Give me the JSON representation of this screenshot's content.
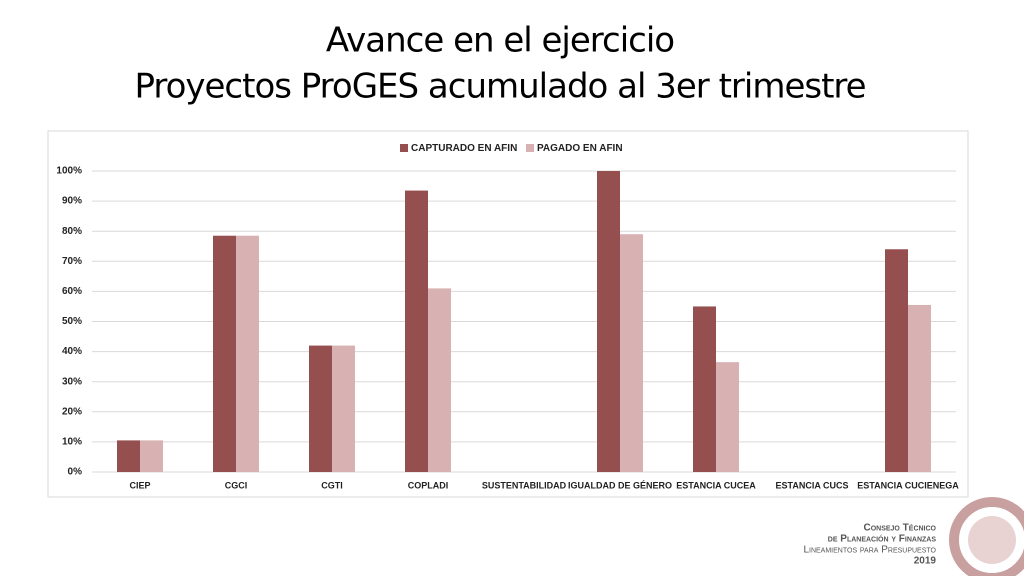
{
  "chart_data": {
    "type": "bar",
    "title": "Avance en el ejercicio",
    "subtitle": "Proyectos ProGES acumulado al 3er trimestre",
    "categories": [
      "CIEP",
      "CGCI",
      "CGTI",
      "COPLADI",
      "SUSTENTABILIDAD",
      "IGUALDAD DE GÉNERO",
      "ESTANCIA CUCEA",
      "ESTANCIA CUCS",
      "ESTANCIA CUCIENEGA"
    ],
    "series": [
      {
        "name": "CAPTURADO EN AFIN",
        "color": "#954f4f",
        "values": [
          10.5,
          78.5,
          42,
          93.5,
          0,
          100,
          55,
          0,
          74
        ]
      },
      {
        "name": "PAGADO EN AFIN",
        "color": "#d8b2b2",
        "values": [
          10.5,
          78.5,
          42,
          61,
          0,
          79,
          36.5,
          0,
          55.5
        ]
      }
    ],
    "ylim": [
      0,
      100
    ],
    "yticks": [
      {
        "value": 0,
        "label": "0%"
      },
      {
        "value": 10,
        "label": "10%"
      },
      {
        "value": 20,
        "label": "20%"
      },
      {
        "value": 30,
        "label": "30%"
      },
      {
        "value": 40,
        "label": "40%"
      },
      {
        "value": 50,
        "label": "50%"
      },
      {
        "value": 60,
        "label": "60%"
      },
      {
        "value": 70,
        "label": "70%"
      },
      {
        "value": 80,
        "label": "80%"
      },
      {
        "value": 90,
        "label": "90%"
      },
      {
        "value": 100,
        "label": "100%"
      }
    ],
    "grid": true,
    "legend": "top"
  },
  "footer": {
    "line1": "Consejo Técnico",
    "line2": "de Planeación y Finanzas",
    "line3": "Lineamientos para Presupuesto",
    "year": "2019"
  }
}
